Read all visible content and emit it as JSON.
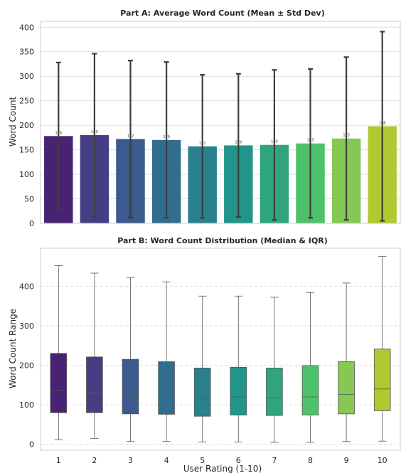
{
  "colors": [
    "#482374",
    "#453e85",
    "#3b5a8d",
    "#316e8d",
    "#2a818e",
    "#21958a",
    "#2fa57d",
    "#4ec26b",
    "#86c854",
    "#b0c930"
  ],
  "chart_data": [
    {
      "type": "bar",
      "title": "Part A: Average Word Count (Mean ± Std Dev)",
      "xlabel": "",
      "ylabel": "Word Count",
      "categories": [
        "1",
        "2",
        "3",
        "4",
        "5",
        "6",
        "7",
        "8",
        "9",
        "10"
      ],
      "values": [
        178,
        180,
        172,
        170,
        157,
        159,
        160,
        163,
        173,
        198
      ],
      "value_labels": [
        "178",
        "180",
        "172",
        "170",
        "157",
        "159",
        "160",
        "163",
        "173",
        "198"
      ],
      "std": [
        150,
        166,
        160,
        159,
        146,
        146,
        153,
        152,
        166,
        193
      ],
      "ylim": [
        0,
        412
      ],
      "yticks": [
        0,
        50,
        100,
        150,
        200,
        250,
        300,
        350,
        400
      ],
      "grid": "horizontal",
      "show_x_ticklabels": false
    },
    {
      "type": "box",
      "title": "Part B: Word Count Distribution (Median & IQR)",
      "xlabel": "User Rating (1-10)",
      "ylabel": "Word Count Range",
      "categories": [
        "1",
        "2",
        "3",
        "4",
        "5",
        "6",
        "7",
        "8",
        "9",
        "10"
      ],
      "boxes": [
        {
          "whislo": 12,
          "q1": 80,
          "med": 137,
          "q3": 230,
          "whishi": 452
        },
        {
          "whislo": 15,
          "q1": 80,
          "med": 132,
          "q3": 221,
          "whishi": 433
        },
        {
          "whislo": 7,
          "q1": 77,
          "med": 126,
          "q3": 215,
          "whishi": 422
        },
        {
          "whislo": 7,
          "q1": 76,
          "med": 124,
          "q3": 209,
          "whishi": 411
        },
        {
          "whislo": 6,
          "q1": 71,
          "med": 117,
          "q3": 193,
          "whishi": 375
        },
        {
          "whislo": 6,
          "q1": 74,
          "med": 120,
          "q3": 195,
          "whishi": 375
        },
        {
          "whislo": 5,
          "q1": 73,
          "med": 117,
          "q3": 193,
          "whishi": 372
        },
        {
          "whislo": 5,
          "q1": 74,
          "med": 120,
          "q3": 199,
          "whishi": 384
        },
        {
          "whislo": 7,
          "q1": 77,
          "med": 126,
          "q3": 209,
          "whishi": 408
        },
        {
          "whislo": 8,
          "q1": 85,
          "med": 140,
          "q3": 241,
          "whishi": 475
        }
      ],
      "ylim": [
        -15,
        496
      ],
      "yticks": [
        0,
        100,
        200,
        300,
        400
      ],
      "grid": "horizontal-dashed"
    }
  ]
}
